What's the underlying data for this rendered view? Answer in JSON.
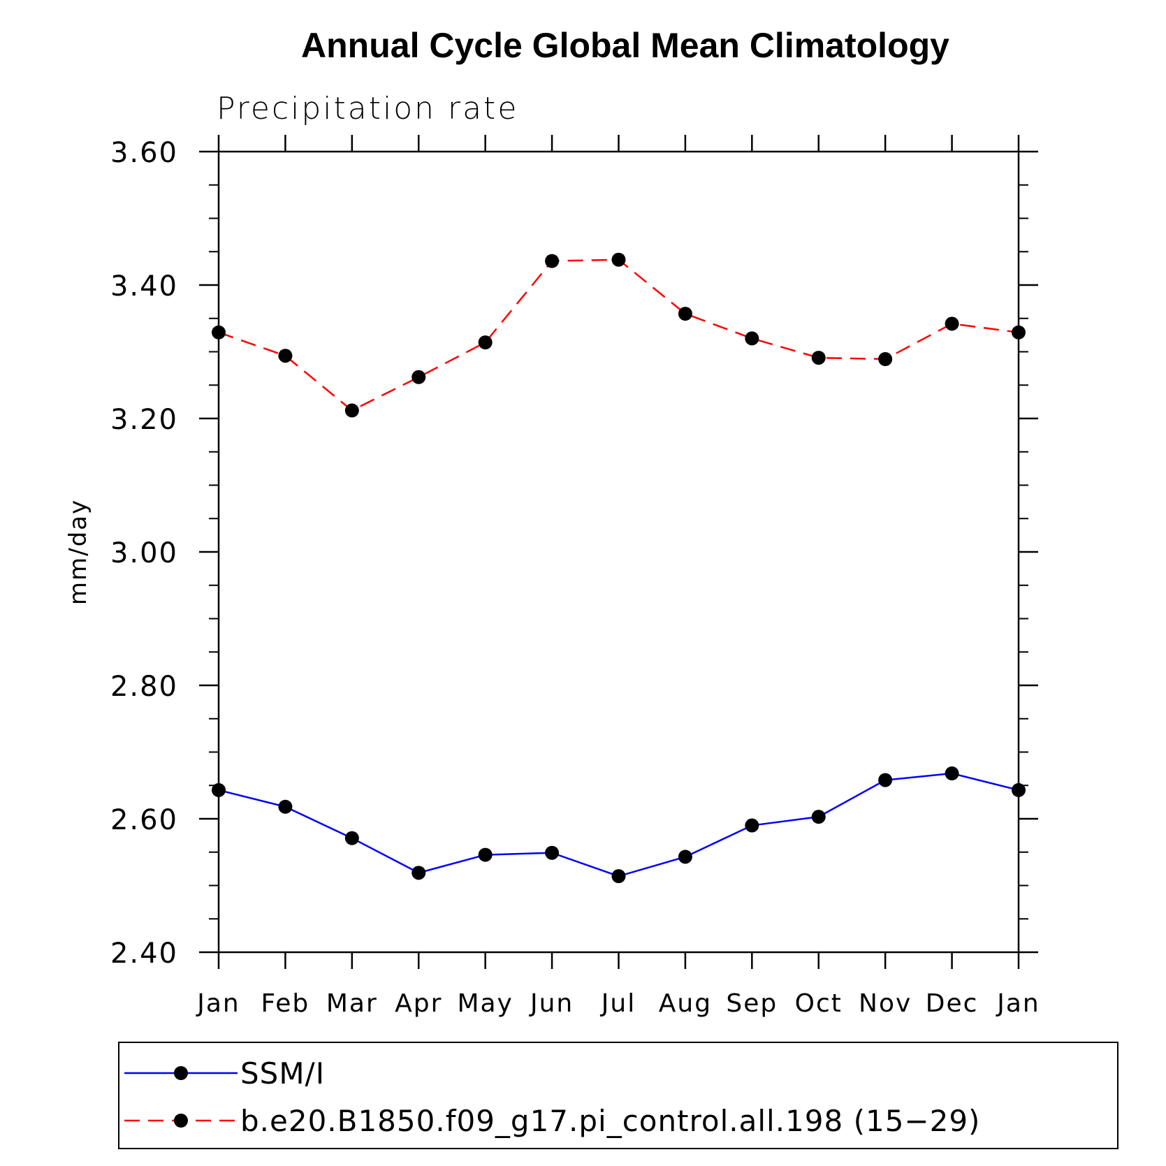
{
  "chart_data": {
    "type": "line",
    "title": "Annual Cycle Global Mean Climatology",
    "subtitle": "Precipitation rate",
    "ylabel": "mm/day",
    "xlabel": "",
    "categories": [
      "Jan",
      "Feb",
      "Mar",
      "Apr",
      "May",
      "Jun",
      "Jul",
      "Aug",
      "Sep",
      "Oct",
      "Nov",
      "Dec",
      "Jan"
    ],
    "ylim": [
      2.4,
      3.6
    ],
    "yticks": [
      "2.40",
      "2.60",
      "2.80",
      "3.00",
      "3.20",
      "3.40",
      "3.60"
    ],
    "series": [
      {
        "name": "SSM/I",
        "color": "#0000ff",
        "style": "solid",
        "values": [
          2.643,
          2.618,
          2.571,
          2.519,
          2.546,
          2.549,
          2.514,
          2.543,
          2.59,
          2.603,
          2.658,
          2.668,
          2.643
        ]
      },
      {
        "name": "b.e20.B1850.f09_g17.pi_control.all.198 (15−29)",
        "color": "#ff0000",
        "style": "dashed",
        "values": [
          3.329,
          3.294,
          3.212,
          3.262,
          3.314,
          3.436,
          3.438,
          3.357,
          3.32,
          3.291,
          3.289,
          3.342,
          3.329
        ]
      }
    ],
    "legend_position": "bottom"
  }
}
